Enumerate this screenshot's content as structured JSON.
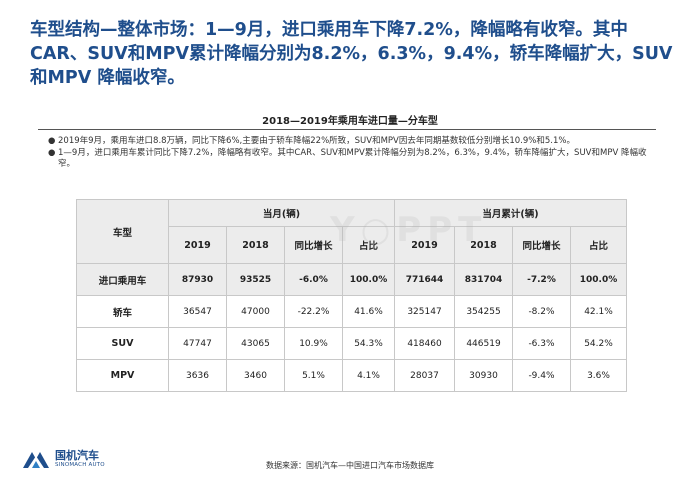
{
  "headline": "车型结构—整体市场：1—9月，进口乘用车下降7.2%，降幅略有收窄。其中CAR、SUV和MPV累计降幅分别为8.2%，6.3%，9.4%，轿车降幅扩大，SUV和MPV 降幅收窄。",
  "table_title": "2018—2019年乘用车进口量—分车型",
  "notes": [
    "2019年9月，乘用车进口8.8万辆，同比下降6%,主要由于轿车降幅22%所致，SUV和MPV因去年同期基数较低分别增长10.9%和5.1%。",
    "1—9月，进口乘用车累计同比下降7.2%，降幅略有收窄。其中CAR、SUV和MPV累计降幅分别为8.2%，6.3%，9.4%，轿车降幅扩大，SUV和MPV 降幅收窄。"
  ],
  "watermark": "Y○PPT",
  "table": {
    "row_header": "车型",
    "groups": [
      "当月(辆)",
      "当月累计(辆)"
    ],
    "columns": [
      "2019",
      "2018",
      "同比增长",
      "占比",
      "2019",
      "2018",
      "同比增长",
      "占比"
    ],
    "rows": [
      {
        "name": "进口乘用车",
        "values": [
          "87930",
          "93525",
          "-6.0%",
          "100.0%",
          "771644",
          "831704",
          "-7.2%",
          "100.0%"
        ]
      },
      {
        "name": "轿车",
        "values": [
          "36547",
          "47000",
          "-22.2%",
          "41.6%",
          "325147",
          "354255",
          "-8.2%",
          "42.1%"
        ]
      },
      {
        "name": "SUV",
        "values": [
          "47747",
          "43065",
          "10.9%",
          "54.3%",
          "418460",
          "446519",
          "-6.3%",
          "54.2%"
        ]
      },
      {
        "name": "MPV",
        "values": [
          "3636",
          "3460",
          "5.1%",
          "4.1%",
          "28037",
          "30930",
          "-9.4%",
          "3.6%"
        ]
      }
    ]
  },
  "logo": {
    "cn": "国机汽车",
    "en": "SINOMACH AUTO",
    "color": "#1f4e8c"
  },
  "source": "数据来源：国机汽车—中国进口汽车市场数据库"
}
